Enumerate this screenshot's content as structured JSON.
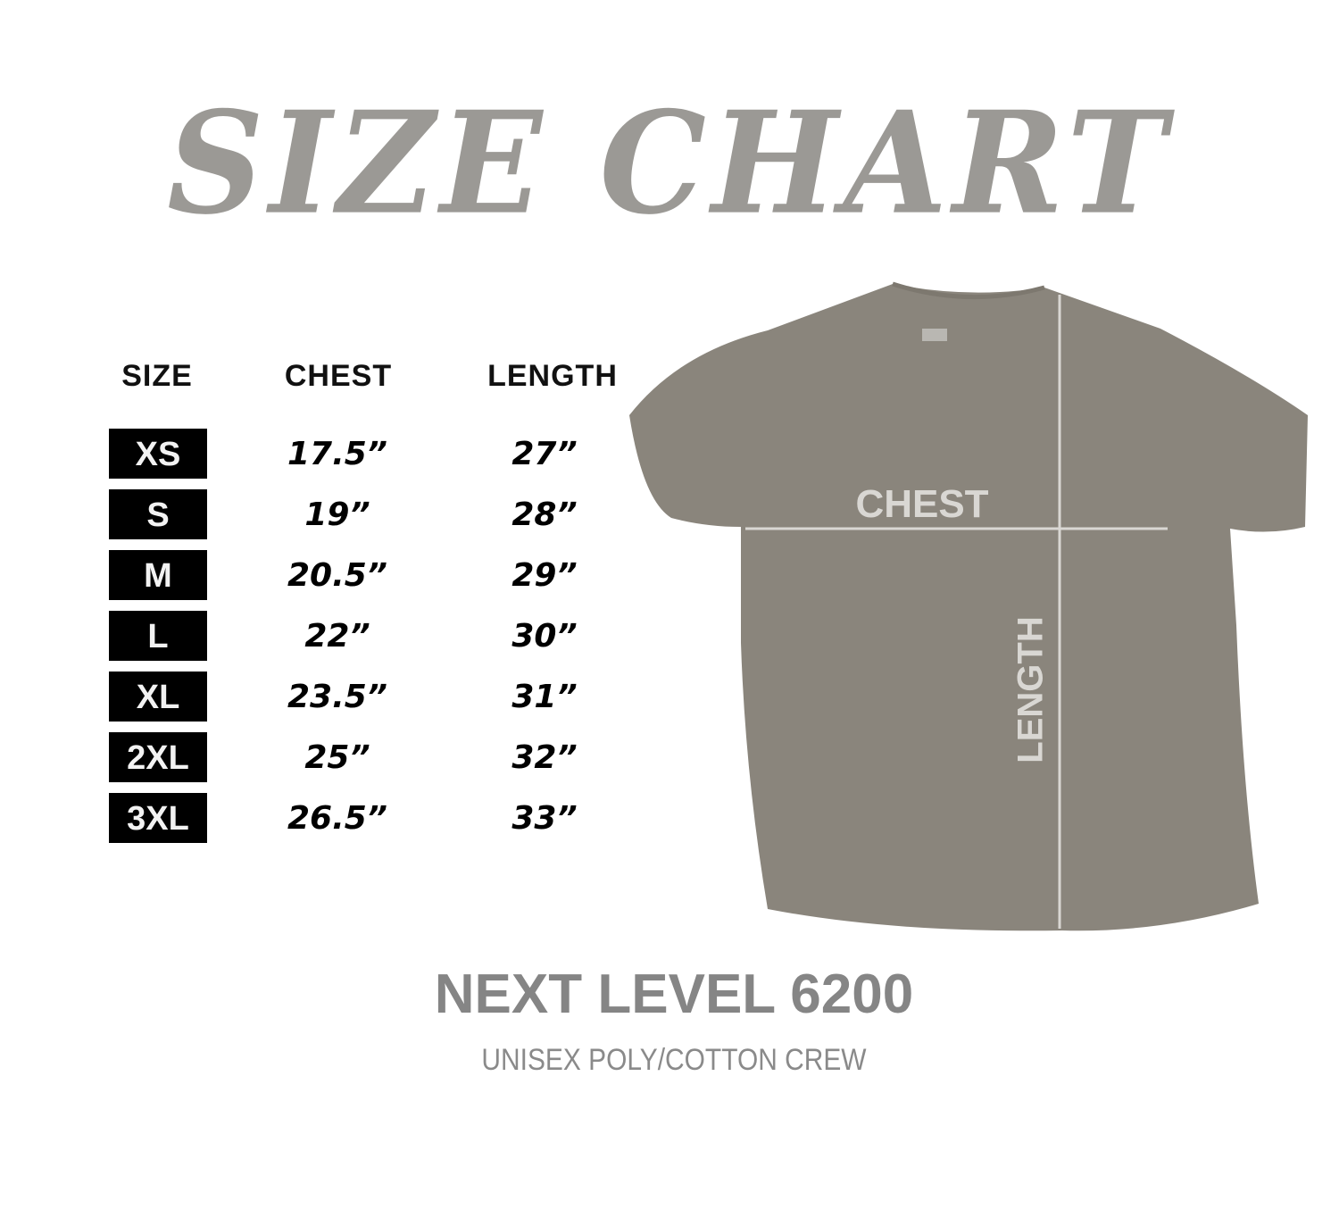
{
  "title": "SIZE CHART",
  "table": {
    "headers": [
      "SIZE",
      "CHEST",
      "LENGTH"
    ],
    "rows": [
      {
        "size": "XS",
        "chest": "17.5”",
        "length": "27”"
      },
      {
        "size": "S",
        "chest": "19”",
        "length": "28”"
      },
      {
        "size": "M",
        "chest": "20.5”",
        "length": "29”"
      },
      {
        "size": "L",
        "chest": "22”",
        "length": "30”"
      },
      {
        "size": "XL",
        "chest": "23.5”",
        "length": "31”"
      },
      {
        "size": "2XL",
        "chest": "25”",
        "length": "32”"
      },
      {
        "size": "3XL",
        "chest": "26.5”",
        "length": "33”"
      }
    ]
  },
  "shirt": {
    "chest_label": "CHEST",
    "length_label": "LENGTH",
    "color": "#8a857c"
  },
  "product": {
    "model": "NEXT LEVEL 6200",
    "description": "UNISEX POLY/COTTON CREW"
  },
  "colors": {
    "title": "#9b9995",
    "label_bg": "#000000",
    "model_text": "#858585"
  }
}
